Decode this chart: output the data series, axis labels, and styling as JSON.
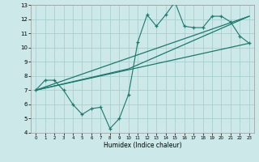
{
  "xlabel": "Humidex (Indice chaleur)",
  "bg_color": "#cce8e8",
  "grid_color": "#aacece",
  "line_color": "#1a7a6e",
  "xlim": [
    -0.5,
    23.5
  ],
  "ylim": [
    4,
    13
  ],
  "xticks": [
    0,
    1,
    2,
    3,
    4,
    5,
    6,
    7,
    8,
    9,
    10,
    11,
    12,
    13,
    14,
    15,
    16,
    17,
    18,
    19,
    20,
    21,
    22,
    23
  ],
  "yticks": [
    4,
    5,
    6,
    7,
    8,
    9,
    10,
    11,
    12,
    13
  ],
  "zigzag_x": [
    0,
    1,
    2,
    3,
    4,
    5,
    6,
    7,
    8,
    9,
    10,
    11,
    12,
    13,
    14,
    15,
    16,
    17,
    18,
    19,
    20,
    21,
    22,
    23
  ],
  "zigzag_y": [
    7.0,
    7.7,
    7.7,
    7.0,
    6.0,
    5.3,
    5.7,
    5.8,
    4.3,
    5.0,
    6.7,
    10.4,
    12.3,
    11.5,
    12.3,
    13.2,
    11.5,
    11.4,
    11.4,
    12.2,
    12.2,
    11.8,
    10.8,
    10.3
  ],
  "line1_x": [
    0,
    23
  ],
  "line1_y": [
    7.0,
    10.3
  ],
  "line2_x": [
    0,
    10,
    23
  ],
  "line2_y": [
    7.0,
    8.5,
    12.2
  ],
  "line3_x": [
    0,
    23
  ],
  "line3_y": [
    7.0,
    12.2
  ]
}
